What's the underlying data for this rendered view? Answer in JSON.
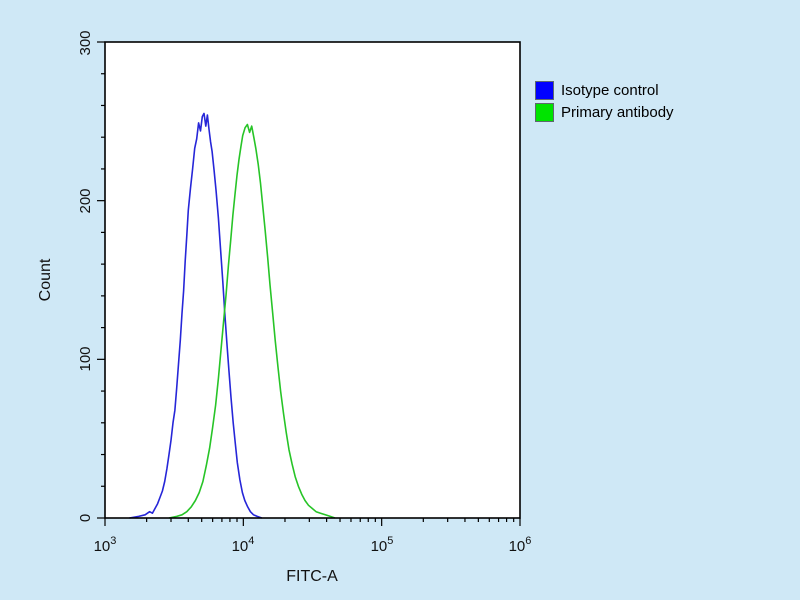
{
  "figure": {
    "background_color": "#cfe8f6",
    "plot_background_color": "#ffffff"
  },
  "chart_data": {
    "type": "line",
    "title": "",
    "xlabel": "FITC-A",
    "ylabel": "Count",
    "x_scale": "log10",
    "x_range": [
      1000,
      1000000
    ],
    "ylim": [
      0,
      300
    ],
    "grid": "off",
    "y_ticks": [
      0,
      100,
      200,
      300
    ],
    "y_ticks_labels": [
      "0",
      "100",
      "200",
      "300"
    ],
    "y_minor_tick_step": 20,
    "x_ticks": [
      {
        "base": "10",
        "exp": "3",
        "value": 1000
      },
      {
        "base": "10",
        "exp": "4",
        "value": 10000
      },
      {
        "base": "10",
        "exp": "5",
        "value": 100000
      },
      {
        "base": "10",
        "exp": "6",
        "value": 1000000
      }
    ],
    "legend": {
      "position": "top-right-outside",
      "entries": [
        {
          "label": "Isotype control",
          "color": "#0000ff"
        },
        {
          "label": "Primary antibody",
          "color": "#00e400"
        }
      ]
    },
    "series": [
      {
        "name": "Isotype control",
        "color": "#2626d8",
        "peak_x": 5200,
        "peak_y": 255,
        "points": [
          [
            1500,
            0
          ],
          [
            1750,
            1
          ],
          [
            1950,
            2
          ],
          [
            2100,
            4
          ],
          [
            2200,
            3
          ],
          [
            2300,
            6
          ],
          [
            2400,
            9
          ],
          [
            2500,
            13
          ],
          [
            2600,
            17
          ],
          [
            2700,
            23
          ],
          [
            2800,
            31
          ],
          [
            2900,
            40
          ],
          [
            3000,
            49
          ],
          [
            3100,
            60
          ],
          [
            3200,
            68
          ],
          [
            3300,
            82
          ],
          [
            3400,
            97
          ],
          [
            3500,
            112
          ],
          [
            3600,
            129
          ],
          [
            3700,
            143
          ],
          [
            3800,
            162
          ],
          [
            3900,
            178
          ],
          [
            4000,
            194
          ],
          [
            4150,
            208
          ],
          [
            4300,
            220
          ],
          [
            4450,
            233
          ],
          [
            4600,
            239
          ],
          [
            4750,
            249
          ],
          [
            4900,
            244
          ],
          [
            5050,
            253
          ],
          [
            5200,
            255
          ],
          [
            5350,
            247
          ],
          [
            5500,
            254
          ],
          [
            5650,
            245
          ],
          [
            5800,
            237
          ],
          [
            5950,
            231
          ],
          [
            6150,
            219
          ],
          [
            6350,
            206
          ],
          [
            6600,
            189
          ],
          [
            6850,
            169
          ],
          [
            7100,
            149
          ],
          [
            7350,
            129
          ],
          [
            7600,
            111
          ],
          [
            7850,
            94
          ],
          [
            8150,
            76
          ],
          [
            8450,
            60
          ],
          [
            8750,
            47
          ],
          [
            9050,
            35
          ],
          [
            9450,
            24
          ],
          [
            9850,
            16
          ],
          [
            10250,
            11
          ],
          [
            10750,
            7
          ],
          [
            11250,
            4
          ],
          [
            11850,
            2
          ],
          [
            12600,
            1
          ],
          [
            13600,
            0
          ]
        ]
      },
      {
        "name": "Primary antibody",
        "color": "#27c427",
        "peak_x": 10700,
        "peak_y": 248,
        "points": [
          [
            2900,
            0
          ],
          [
            3300,
            1
          ],
          [
            3600,
            2
          ],
          [
            3900,
            4
          ],
          [
            4200,
            7
          ],
          [
            4500,
            11
          ],
          [
            4800,
            16
          ],
          [
            5100,
            23
          ],
          [
            5400,
            33
          ],
          [
            5700,
            44
          ],
          [
            6000,
            57
          ],
          [
            6300,
            71
          ],
          [
            6600,
            88
          ],
          [
            6900,
            106
          ],
          [
            7200,
            124
          ],
          [
            7500,
            141
          ],
          [
            7800,
            159
          ],
          [
            8100,
            175
          ],
          [
            8400,
            191
          ],
          [
            8700,
            204
          ],
          [
            9000,
            216
          ],
          [
            9300,
            226
          ],
          [
            9600,
            234
          ],
          [
            9900,
            241
          ],
          [
            10300,
            246
          ],
          [
            10700,
            248
          ],
          [
            11100,
            243
          ],
          [
            11500,
            247
          ],
          [
            11900,
            240
          ],
          [
            12300,
            233
          ],
          [
            12800,
            223
          ],
          [
            13300,
            211
          ],
          [
            13800,
            197
          ],
          [
            14400,
            181
          ],
          [
            15000,
            164
          ],
          [
            15600,
            147
          ],
          [
            16300,
            129
          ],
          [
            17000,
            112
          ],
          [
            17800,
            95
          ],
          [
            18600,
            80
          ],
          [
            19500,
            66
          ],
          [
            20400,
            54
          ],
          [
            21400,
            43
          ],
          [
            22500,
            34
          ],
          [
            23700,
            26
          ],
          [
            25000,
            20
          ],
          [
            26400,
            15
          ],
          [
            27900,
            11
          ],
          [
            29600,
            8
          ],
          [
            31500,
            6
          ],
          [
            33600,
            4
          ],
          [
            36100,
            3
          ],
          [
            39100,
            2
          ],
          [
            42500,
            1
          ],
          [
            46000,
            0
          ]
        ]
      }
    ]
  }
}
